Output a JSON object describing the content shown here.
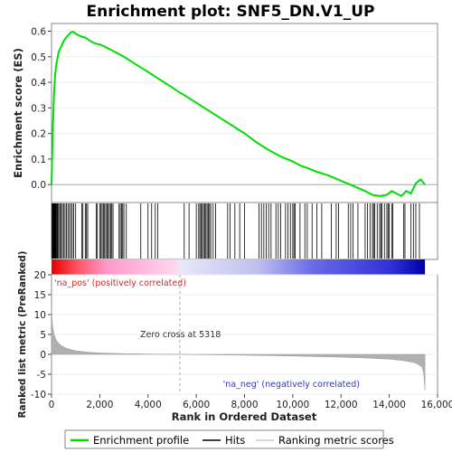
{
  "chart_data": {
    "type": "line",
    "title": "Enrichment plot: SNF5_DN.V1_UP",
    "top_panel": {
      "ylabel": "Enrichment score (ES)",
      "ylim": [
        -0.07,
        0.63
      ],
      "yticks": [
        "0.0",
        "0.1",
        "0.2",
        "0.3",
        "0.4",
        "0.5",
        "0.6"
      ],
      "series": [
        {
          "name": "Enrichment profile",
          "color": "#00dd00",
          "x": [
            0,
            50,
            100,
            150,
            200,
            300,
            400,
            500,
            600,
            700,
            800,
            900,
            1000,
            1200,
            1400,
            1600,
            1800,
            2000,
            2200,
            2400,
            2600,
            2800,
            3000,
            3500,
            4000,
            4500,
            5000,
            5318,
            5500,
            6000,
            6500,
            7000,
            7500,
            8000,
            8500,
            9000,
            9500,
            10000,
            10300,
            10600,
            11000,
            11500,
            12000,
            12500,
            13000,
            13300,
            13600,
            13900,
            14100,
            14300,
            14500,
            14700,
            14900,
            15100,
            15300,
            15480
          ],
          "y": [
            0.0,
            0.2,
            0.35,
            0.43,
            0.47,
            0.52,
            0.54,
            0.56,
            0.575,
            0.585,
            0.595,
            0.598,
            0.59,
            0.58,
            0.575,
            0.562,
            0.552,
            0.548,
            0.54,
            0.53,
            0.52,
            0.51,
            0.5,
            0.47,
            0.44,
            0.41,
            0.38,
            0.36,
            0.35,
            0.32,
            0.29,
            0.26,
            0.23,
            0.2,
            0.165,
            0.135,
            0.11,
            0.09,
            0.075,
            0.065,
            0.05,
            0.035,
            0.015,
            -0.005,
            -0.025,
            -0.04,
            -0.045,
            -0.04,
            -0.025,
            -0.035,
            -0.045,
            -0.025,
            -0.035,
            0.005,
            0.02,
            0.0
          ]
        }
      ]
    },
    "hits": {
      "name": "Hits",
      "positions": [
        20,
        40,
        60,
        80,
        100,
        120,
        140,
        160,
        180,
        200,
        230,
        260,
        300,
        350,
        400,
        450,
        500,
        560,
        620,
        680,
        740,
        800,
        860,
        920,
        1000,
        1250,
        1300,
        1400,
        1450,
        1500,
        1850,
        1900,
        2000,
        2050,
        2100,
        2150,
        2200,
        2250,
        2300,
        2350,
        2400,
        2450,
        2500,
        2550,
        2800,
        2850,
        2900,
        2950,
        3000,
        3100,
        3700,
        4000,
        4150,
        4300,
        4400,
        5500,
        5700,
        6000,
        6100,
        6150,
        6200,
        6250,
        6300,
        6350,
        6400,
        6450,
        6500,
        6550,
        6600,
        6700,
        6800,
        7300,
        7400,
        7600,
        7800,
        8000,
        8600,
        8700,
        8800,
        8900,
        9000,
        9100,
        9300,
        9400,
        9500,
        9700,
        9800,
        9900,
        10000,
        10050,
        10100,
        10300,
        10500,
        10600,
        10800,
        11000,
        11200,
        11600,
        11800,
        11900,
        12300,
        12400,
        12500,
        12700,
        13000,
        13100,
        13200,
        13300,
        13350,
        13400,
        13500,
        13600,
        13650,
        13700,
        13800,
        13900,
        13950,
        14000,
        14100,
        14150,
        14600,
        14650,
        14900,
        15000,
        15100,
        15250
      ]
    },
    "rank_metric": {
      "name": "Ranking metric scores",
      "ylabel": "Ranked list metric (PreRanked)",
      "xlabel": "Rank in Ordered Dataset",
      "ylim": [
        -10,
        20
      ],
      "yticks": [
        "-10",
        "-5",
        "0",
        "5",
        "10",
        "15",
        "20"
      ],
      "xlim": [
        0,
        16000
      ],
      "xticks": [
        "0",
        "2,000",
        "4,000",
        "6,000",
        "8,000",
        "10,000",
        "12,000",
        "14,000",
        "16,000"
      ],
      "x": [
        0,
        30,
        60,
        100,
        150,
        200,
        300,
        400,
        600,
        800,
        1000,
        1500,
        2000,
        3000,
        4000,
        5318,
        6000,
        8000,
        10000,
        12000,
        13000,
        14000,
        14500,
        15000,
        15200,
        15350,
        15420,
        15450,
        15480
      ],
      "y": [
        12,
        8,
        6.5,
        5.2,
        4.3,
        3.6,
        2.8,
        2.2,
        1.6,
        1.2,
        0.9,
        0.55,
        0.35,
        0.18,
        0.08,
        0.0,
        -0.07,
        -0.2,
        -0.4,
        -0.7,
        -0.9,
        -1.2,
        -1.5,
        -2.0,
        -2.5,
        -3.2,
        -4.5,
        -6.5,
        -9
      ]
    },
    "annotations": {
      "zero_cross": "Zero cross at 5318",
      "zero_cross_rank": 5318,
      "pos_label": "'na_pos' (positively correlated)",
      "neg_label": "'na_neg' (negatively correlated)"
    },
    "legend": [
      "Enrichment profile",
      "Hits",
      "Ranking metric scores"
    ],
    "colors": {
      "profile": "#00dd00",
      "pos_text": "#dd2222",
      "neg_text": "#3333cc",
      "metric_fill": "#b0b0b0"
    }
  }
}
